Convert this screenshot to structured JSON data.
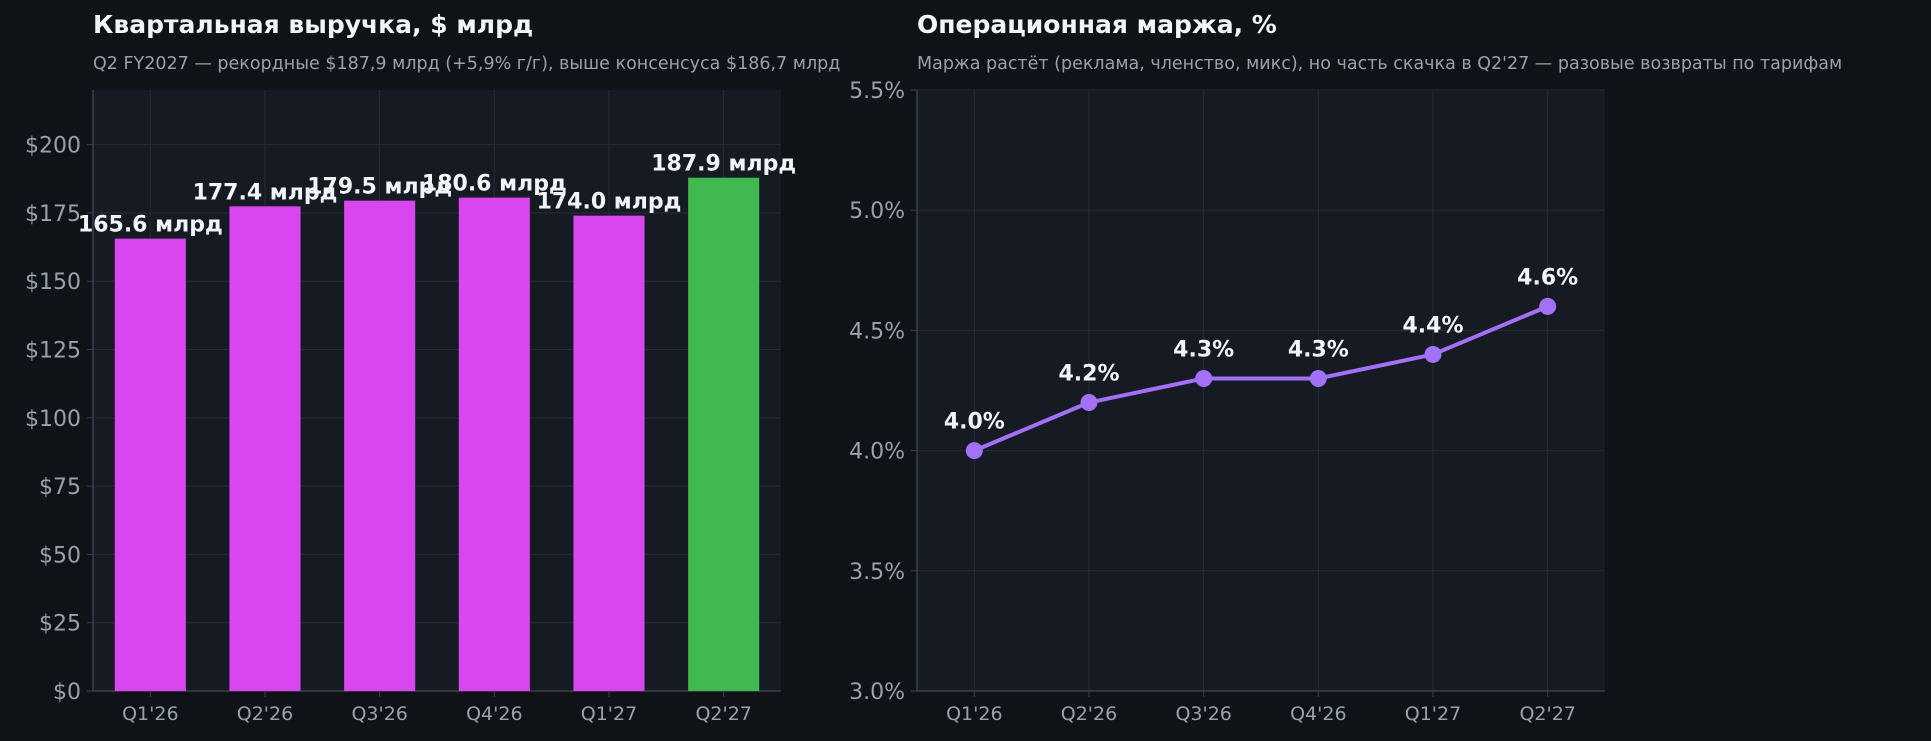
{
  "colors": {
    "page_bg": "#0f1318",
    "plot_bg": "#161b23",
    "grid": "#262c36",
    "axis": "#3a414c",
    "tick_text": "#98a1ad",
    "label_text": "#f2f4f7",
    "bar_default": "#d946ef",
    "bar_highlight": "#3fb950",
    "line": "#a371f7"
  },
  "chart_data": [
    {
      "type": "bar",
      "title": "Квартальная выручка, $ млрд",
      "subtitle": "Q2 FY2027 — рекордные $187,9 млрд (+5,9% г/г), выше консенсуса $186,7 млрд",
      "categories": [
        "Q1'26",
        "Q2'26",
        "Q3'26",
        "Q4'26",
        "Q1'27",
        "Q2'27"
      ],
      "values": [
        165.6,
        177.4,
        179.5,
        180.6,
        174.0,
        187.9
      ],
      "value_labels": [
        "165.6 млрд",
        "177.4 млрд",
        "179.5 млрд",
        "180.6 млрд",
        "174.0 млрд",
        "187.9 млрд"
      ],
      "highlight_index": 5,
      "ylim": [
        0,
        220
      ],
      "yticks": [
        0,
        25,
        50,
        75,
        100,
        125,
        150,
        175,
        200
      ],
      "ytick_labels": [
        "$0",
        "$25",
        "$50",
        "$75",
        "$100",
        "$125",
        "$150",
        "$175",
        "$200"
      ],
      "xlabel": "",
      "ylabel": "",
      "grid": true
    },
    {
      "type": "line",
      "title": "Операционная маржа, %",
      "subtitle": "Маржа растёт (реклама, членство, микс), но часть скачка в Q2'27 — разовые возвраты по тарифам",
      "categories": [
        "Q1'26",
        "Q2'26",
        "Q3'26",
        "Q4'26",
        "Q1'27",
        "Q2'27"
      ],
      "values": [
        4.0,
        4.2,
        4.3,
        4.3,
        4.4,
        4.6
      ],
      "value_labels": [
        "4.0%",
        "4.2%",
        "4.3%",
        "4.3%",
        "4.4%",
        "4.6%"
      ],
      "ylim": [
        3.0,
        5.5
      ],
      "yticks": [
        3.0,
        3.5,
        4.0,
        4.5,
        5.0,
        5.5
      ],
      "ytick_labels": [
        "3.0%",
        "3.5%",
        "4.0%",
        "4.5%",
        "5.0%",
        "5.5%"
      ],
      "xlabel": "",
      "ylabel": "",
      "grid": true
    }
  ]
}
